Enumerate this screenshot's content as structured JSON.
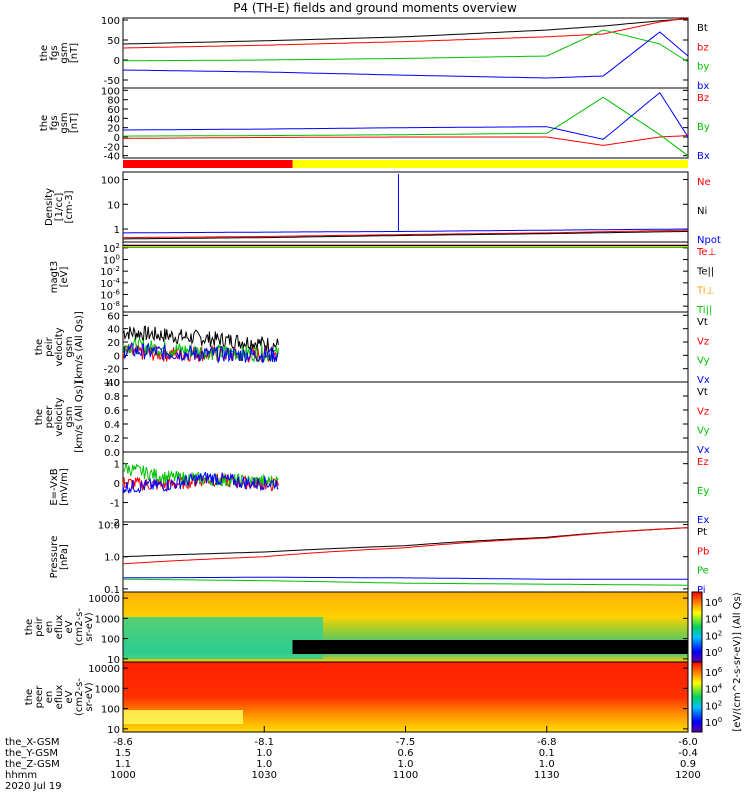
{
  "title": "P4 (TH-E) fields and ground moments overview",
  "date_label": "2020 Jul 19",
  "footer": {
    "rows": [
      {
        "label": "the_X-GSM",
        "values": [
          "-8.6",
          "-8.1",
          "-7.5",
          "-6.8",
          "-6.0"
        ]
      },
      {
        "label": "the_Y-GSM",
        "values": [
          "1.5",
          "1.0",
          "0.6",
          "0.1",
          "-0.4"
        ]
      },
      {
        "label": "the_Z-GSM",
        "values": [
          "1.1",
          "1.0",
          "1.0",
          "1.0",
          "0.9"
        ]
      },
      {
        "label": "hhmm",
        "values": [
          "1000",
          "1030",
          "1100",
          "1130",
          "1200"
        ]
      }
    ]
  },
  "colorbar": {
    "label": "[eV/(cm^2-s-sr-eV)] (All Qs)",
    "ticks_top": [
      "10^6",
      "10^4",
      "10^2",
      "10^0"
    ],
    "ticks_bottom": [
      "10^6",
      "10^4",
      "10^2",
      "10^0"
    ]
  },
  "chart_data": [
    {
      "type": "line",
      "ylabel": [
        "the",
        "fgs",
        "gsm",
        "[nT]"
      ],
      "yticks": [
        "100",
        "50",
        "0",
        "-50"
      ],
      "ylim": [
        -70,
        105
      ],
      "legend": [
        {
          "name": "Bt",
          "color": "#000000"
        },
        {
          "name": "bz",
          "color": "#ff0000"
        },
        {
          "name": "by",
          "color": "#00c000"
        },
        {
          "name": "bx",
          "color": "#0000ff"
        }
      ],
      "x_hours": [
        10.0,
        10.5,
        11.0,
        11.5,
        11.7,
        11.9,
        12.0
      ],
      "series": [
        {
          "name": "Bt",
          "values": [
            40,
            48,
            58,
            75,
            85,
            98,
            103
          ]
        },
        {
          "name": "bz",
          "values": [
            30,
            37,
            46,
            58,
            65,
            95,
            105
          ]
        },
        {
          "name": "by",
          "values": [
            -2,
            0,
            4,
            10,
            75,
            40,
            -5
          ]
        },
        {
          "name": "bx",
          "values": [
            -25,
            -30,
            -38,
            -45,
            -40,
            70,
            10
          ]
        }
      ]
    },
    {
      "type": "line",
      "ylabel": [
        "the",
        "fgs",
        "gsm",
        "[nT]"
      ],
      "yticks": [
        "100",
        "80",
        "60",
        "40",
        "20",
        "0",
        "-20",
        "-40"
      ],
      "ylim": [
        -45,
        105
      ],
      "legend": [
        {
          "name": "Bz",
          "color": "#ff0000"
        },
        {
          "name": "By",
          "color": "#00c000"
        },
        {
          "name": "Bx",
          "color": "#0000ff"
        }
      ],
      "x_hours": [
        10.0,
        10.5,
        11.0,
        11.5,
        11.7,
        11.9,
        12.0
      ],
      "series": [
        {
          "name": "Bz",
          "values": [
            -3,
            -1,
            0,
            0,
            -18,
            0,
            3
          ]
        },
        {
          "name": "By",
          "values": [
            2,
            3,
            5,
            8,
            85,
            5,
            -40
          ]
        },
        {
          "name": "Bx",
          "values": [
            15,
            17,
            20,
            22,
            -5,
            95,
            0
          ]
        }
      ]
    },
    {
      "type": "bar_indicator",
      "segments": [
        {
          "from_hour": 10.0,
          "to_hour": 10.6,
          "color": "#ff0000"
        },
        {
          "from_hour": 10.6,
          "to_hour": 12.0,
          "color": "#ffff00"
        }
      ]
    },
    {
      "type": "line",
      "scale": "log",
      "ylabel": [
        "Density",
        "[1/cc]",
        "[cm-3]"
      ],
      "yticks": [
        "100",
        "10",
        "1"
      ],
      "ylim": [
        0.3,
        200
      ],
      "legend": [
        {
          "name": "Ne",
          "color": "#ff0000"
        },
        {
          "name": "Ni",
          "color": "#000000"
        },
        {
          "name": "Npot",
          "color": "#0000ff"
        }
      ],
      "x_hours": [
        10.0,
        10.5,
        11.0,
        11.5,
        12.0
      ],
      "series": [
        {
          "name": "Ne",
          "values": [
            0.45,
            0.5,
            0.6,
            0.7,
            0.9
          ]
        },
        {
          "name": "Ni",
          "values": [
            0.4,
            0.45,
            0.55,
            0.65,
            0.8
          ]
        },
        {
          "name": "Npot",
          "values": [
            0.7,
            0.75,
            0.8,
            0.9,
            1.0
          ]
        }
      ]
    },
    {
      "type": "line",
      "scale": "log",
      "ylabel": [
        "magt3",
        "[eV]"
      ],
      "yticks": [
        "10^2",
        "10^0",
        "10^-2",
        "10^-4",
        "10^-6",
        "10^-8"
      ],
      "ylim": [
        1e-09,
        1000
      ],
      "legend": [
        {
          "name": "Te⊥",
          "color": "#ff0000"
        },
        {
          "name": "Te||",
          "color": "#000000"
        },
        {
          "name": "Ti⊥",
          "color": "#ffa500"
        },
        {
          "name": "Ti||",
          "color": "#00c000"
        }
      ],
      "x_hours": [
        10.0,
        12.0
      ],
      "series": [
        {
          "name": "Te⊥",
          "values": [
            300,
            300
          ]
        },
        {
          "name": "Te||",
          "values": [
            250,
            250
          ]
        },
        {
          "name": "Ti⊥",
          "values": [
            150,
            150
          ]
        },
        {
          "name": "Ti||",
          "values": [
            120,
            120
          ]
        }
      ]
    },
    {
      "type": "line",
      "ylabel": [
        "the",
        "peir",
        "velocity",
        "gsm",
        "[km/s (All Qs)]"
      ],
      "yticks": [
        "60",
        "40",
        "20",
        "0",
        "-20",
        "-40"
      ],
      "ylim": [
        -40,
        65
      ],
      "legend": [
        {
          "name": "Vt",
          "color": "#000000"
        },
        {
          "name": "Vz",
          "color": "#ff0000"
        },
        {
          "name": "Vy",
          "color": "#00c000"
        },
        {
          "name": "Vx",
          "color": "#0000ff"
        }
      ],
      "x_hours": [
        10.0,
        10.15,
        10.3,
        10.45,
        10.55
      ],
      "series": [
        {
          "name": "Vt",
          "values": [
            35,
            30,
            25,
            20,
            15
          ]
        },
        {
          "name": "Vz",
          "values": [
            5,
            2,
            3,
            0,
            2
          ]
        },
        {
          "name": "Vy",
          "values": [
            15,
            10,
            5,
            3,
            2
          ]
        },
        {
          "name": "Vx",
          "values": [
            8,
            4,
            2,
            1,
            0
          ]
        }
      ]
    },
    {
      "type": "line",
      "ylabel": [
        "the",
        "peer",
        "velocity",
        "gsm",
        "[km/s (All Qs)]"
      ],
      "yticks": [
        "1.0",
        "0.8",
        "0.6",
        "0.4",
        "0.2",
        "0.0"
      ],
      "ylim": [
        0,
        1
      ],
      "legend": [
        {
          "name": "Vt",
          "color": "#000000"
        },
        {
          "name": "Vz",
          "color": "#ff0000"
        },
        {
          "name": "Vy",
          "color": "#00c000"
        },
        {
          "name": "Vx",
          "color": "#0000ff"
        }
      ],
      "x_hours": [],
      "series": []
    },
    {
      "type": "line",
      "ylabel": [
        "E=-VxB",
        "[mV/m]"
      ],
      "yticks": [
        "1",
        "0",
        "-1",
        "-2"
      ],
      "ylim": [
        -2,
        1.6
      ],
      "legend": [
        {
          "name": "Ez",
          "color": "#ff0000"
        },
        {
          "name": "Ey",
          "color": "#00c000"
        },
        {
          "name": "Ex",
          "color": "#0000ff"
        }
      ],
      "x_hours": [
        10.0,
        10.15,
        10.3,
        10.45,
        10.55
      ],
      "series": [
        {
          "name": "Ez",
          "values": [
            0.0,
            -0.1,
            0.2,
            0.0,
            -0.1
          ]
        },
        {
          "name": "Ey",
          "values": [
            0.8,
            0.3,
            0.2,
            0.1,
            0.1
          ]
        },
        {
          "name": "Ex",
          "values": [
            -0.2,
            -0.1,
            0.3,
            0.0,
            0.0
          ]
        }
      ]
    },
    {
      "type": "line",
      "scale": "log",
      "ylabel": [
        "Pressure",
        "[nPa]"
      ],
      "yticks": [
        "10.0",
        "1.0",
        "0.1"
      ],
      "ylim": [
        0.08,
        12
      ],
      "legend": [
        {
          "name": "Pt",
          "color": "#000000"
        },
        {
          "name": "Pb",
          "color": "#ff0000"
        },
        {
          "name": "Pe",
          "color": "#00c000"
        },
        {
          "name": "Pi",
          "color": "#0000ff"
        }
      ],
      "x_hours": [
        10.0,
        10.5,
        11.0,
        11.5,
        12.0
      ],
      "series": [
        {
          "name": "Pt",
          "values": [
            1.0,
            1.4,
            2.2,
            4.0,
            8.0
          ]
        },
        {
          "name": "Pb",
          "values": [
            0.6,
            1.0,
            1.9,
            3.8,
            8.0
          ]
        },
        {
          "name": "Pe",
          "values": [
            0.2,
            0.18,
            0.15,
            0.14,
            0.13
          ]
        },
        {
          "name": "Pi",
          "values": [
            0.22,
            0.23,
            0.22,
            0.2,
            0.2
          ]
        }
      ]
    },
    {
      "type": "heatmap",
      "ylabel": [
        "the",
        "peir",
        "en",
        "eflux",
        "eV",
        "(cm2-s-",
        "sr-eV)"
      ],
      "yticks": [
        "10000",
        "1000",
        "100",
        "10"
      ],
      "ylim": [
        7,
        20000
      ]
    },
    {
      "type": "heatmap",
      "ylabel": [
        "the",
        "peer",
        "en",
        "eflux",
        "eV",
        "(cm2-s-",
        "sr-eV)"
      ],
      "yticks": [
        "10000",
        "1000",
        "100",
        "10"
      ],
      "ylim": [
        7,
        20000
      ]
    }
  ]
}
